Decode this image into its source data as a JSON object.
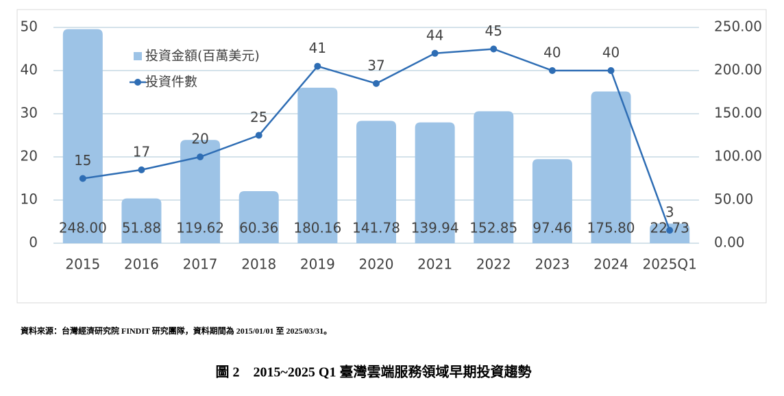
{
  "chart_data": {
    "type": "bar-line",
    "title": "圖 2　2015~2025 Q1 臺灣雲端服務領域早期投資趨勢",
    "note": "資料來源：台灣經濟研究院 FINDIT 研究團隊，資料期間為 2015/01/01 至 2025/03/31。",
    "categories": [
      "2015",
      "2016",
      "2017",
      "2018",
      "2019",
      "2020",
      "2021",
      "2022",
      "2023",
      "2024",
      "2025Q1"
    ],
    "series": [
      {
        "name": "投資金額(百萬美元)",
        "type": "bar",
        "axis": "y2",
        "color": "#9dc3e6",
        "values": [
          248,
          51.88,
          119.62,
          60.36,
          180.16,
          141.78,
          139.94,
          152.85,
          97.46,
          175.8,
          22.73
        ],
        "value_labels": [
          "248.00",
          "51.88",
          "119.62",
          "60.36",
          "180.16",
          "141.78",
          "139.94",
          "152.85",
          "97.46",
          "175.80",
          "22.73"
        ]
      },
      {
        "name": "投資件數",
        "type": "line",
        "axis": "y",
        "color": "#2e6db4",
        "values": [
          15,
          17,
          20,
          25,
          41,
          37,
          44,
          45,
          40,
          40,
          3
        ]
      }
    ],
    "ylim": [
      0,
      50
    ],
    "yticks": [
      0,
      10,
      20,
      30,
      40,
      50
    ],
    "y2lim": [
      0,
      250
    ],
    "y2ticks": [
      {
        "value": 0,
        "label": "0.00"
      },
      {
        "value": 50,
        "label": "50.00"
      },
      {
        "value": 100,
        "label": "100.00"
      },
      {
        "value": 150,
        "label": "150.00"
      },
      {
        "value": 200,
        "label": "200.00"
      },
      {
        "value": 250,
        "label": "250.00"
      }
    ],
    "grid": true
  }
}
